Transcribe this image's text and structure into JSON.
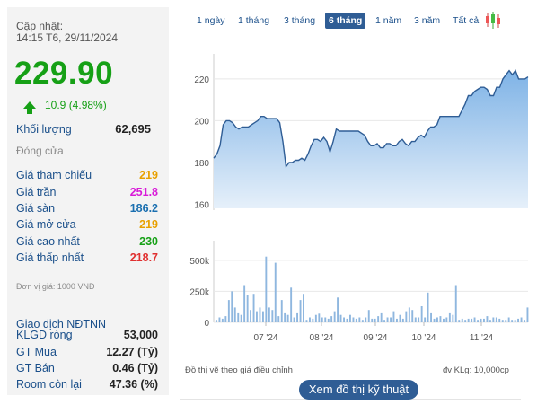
{
  "quote": {
    "updated_label": "Cập nhật:",
    "updated_time": "14:15 T6, 29/11/2024",
    "price": "229.90",
    "change": "10.9 (4.98%)",
    "volume_label": "Khối lượng",
    "volume_value": "62,695",
    "status": "Đóng cửa"
  },
  "prices": [
    {
      "label": "Giá tham chiếu",
      "value": "219",
      "color": "#e8a000"
    },
    {
      "label": "Giá trần",
      "value": "251.8",
      "color": "#d81ad8"
    },
    {
      "label": "Giá sàn",
      "value": "186.2",
      "color": "#1a6fb0"
    },
    {
      "label": "Giá mở cửa",
      "value": "219",
      "color": "#e8a000"
    },
    {
      "label": "Giá cao nhất",
      "value": "230",
      "color": "#16a016"
    },
    {
      "label": "Giá thấp nhất",
      "value": "218.7",
      "color": "#e03030"
    }
  ],
  "unit_note": "Đơn vị giá: 1000 VNĐ",
  "foreign": {
    "title": "Giao dịch NĐTNN",
    "rows": [
      {
        "label": "KLGD ròng",
        "value": "53,000"
      },
      {
        "label": "GT Mua",
        "value": "12.27 (Tỷ)"
      },
      {
        "label": "GT Bán",
        "value": "0.46 (Tỷ)"
      },
      {
        "label": "Room còn lại",
        "value": "47.36 (%)"
      }
    ]
  },
  "tabs": [
    "1 ngày",
    "1 tháng",
    "3 tháng",
    "6 tháng",
    "1 năm",
    "3 năm",
    "Tất cả"
  ],
  "active_tab": "6 tháng",
  "footer": {
    "adjusted_note": "Đồ thị vẽ theo giá điều chỉnh",
    "volume_unit": "đv KLg: 10,000cp",
    "technical_button": "Xem đồ thị kỹ thuật"
  },
  "chart_data": [
    {
      "type": "area",
      "yticks": [
        160,
        180,
        200,
        220
      ],
      "ylim": [
        158,
        232
      ],
      "xticks": [
        "07 '24",
        "08 '24",
        "09 '24",
        "10 '24",
        "11 '24"
      ],
      "values": [
        182,
        184,
        188,
        198,
        200,
        200,
        199,
        197,
        196,
        197,
        197,
        197,
        198,
        199,
        200,
        202,
        202,
        201,
        201,
        201,
        201,
        199,
        190,
        178,
        180,
        180,
        181,
        181,
        182,
        181,
        184,
        188,
        191,
        191,
        190,
        192,
        190,
        185,
        190,
        196,
        195,
        195,
        195,
        195,
        195,
        195,
        195,
        194,
        193,
        190,
        188,
        188,
        189,
        187,
        187,
        189,
        189,
        188,
        188,
        190,
        191,
        189,
        188,
        190,
        190,
        192,
        193,
        192,
        195,
        197,
        197,
        198,
        202,
        202,
        202,
        202,
        202,
        202,
        202,
        205,
        208,
        212,
        212,
        214,
        215,
        216,
        216,
        215,
        212,
        212,
        216,
        216,
        220,
        222,
        224,
        222,
        224,
        220,
        220,
        220,
        221
      ]
    },
    {
      "type": "bar",
      "yticks": [
        "0",
        "250k",
        "500k"
      ],
      "ymax": 600000,
      "values": [
        20000,
        40000,
        30000,
        50000,
        180000,
        250000,
        120000,
        80000,
        60000,
        300000,
        220000,
        100000,
        230000,
        90000,
        120000,
        90000,
        530000,
        120000,
        100000,
        480000,
        50000,
        180000,
        80000,
        60000,
        280000,
        40000,
        80000,
        180000,
        230000,
        20000,
        40000,
        30000,
        60000,
        70000,
        40000,
        40000,
        30000,
        50000,
        90000,
        200000,
        60000,
        40000,
        30000,
        60000,
        40000,
        30000,
        40000,
        20000,
        40000,
        100000,
        30000,
        30000,
        50000,
        80000,
        20000,
        40000,
        40000,
        90000,
        30000,
        60000,
        30000,
        90000,
        120000,
        100000,
        40000,
        40000,
        130000,
        40000,
        240000,
        80000,
        30000,
        40000,
        50000,
        30000,
        40000,
        80000,
        60000,
        300000,
        20000,
        30000,
        20000,
        30000,
        30000,
        40000,
        20000,
        30000,
        30000,
        50000,
        20000,
        40000,
        40000,
        30000,
        20000,
        20000,
        40000,
        20000,
        20000,
        30000,
        40000,
        20000,
        120000
      ]
    }
  ]
}
